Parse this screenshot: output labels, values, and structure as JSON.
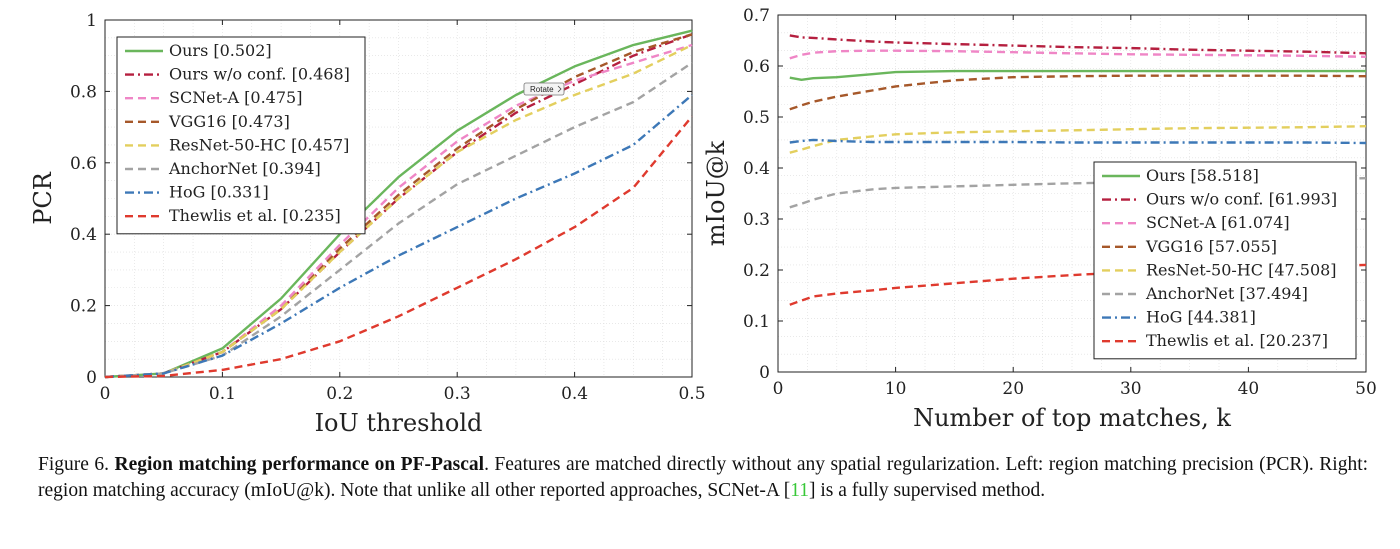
{
  "caption": {
    "figure_label": "Figure 6.",
    "title": "Region matching performance on PF-Pascal",
    "text_a": ". Features are matched directly without any spatial regularization. Left: region matching precision (PCR). Right: region matching accuracy (mIoU@k). Note that unlike all other reported approaches, SCNet-A [",
    "ref": "11",
    "text_b": "] is a fully supervised method."
  },
  "tooltip": {
    "label": "Rotate"
  },
  "colors": {
    "Ours": "#6ab65c",
    "Ours w/o conf.": "#b51f3f",
    "SCNet-A": "#ef86c6",
    "VGG16": "#a6582a",
    "ResNet-50-HC": "#e3cf5e",
    "AnchorNet": "#a3a3a3",
    "HoG": "#3d78b7",
    "Thewlis et al.": "#df3a2e"
  },
  "chart_data": [
    {
      "type": "line",
      "xlabel": "IoU threshold",
      "ylabel": "PCR",
      "xlim": [
        0,
        0.5
      ],
      "ylim": [
        0,
        1
      ],
      "xticks": [
        "0",
        "0.1",
        "0.2",
        "0.3",
        "0.4",
        "0.5"
      ],
      "xtick_values": [
        0,
        0.1,
        0.2,
        0.3,
        0.4,
        0.5
      ],
      "yticks": [
        "0",
        "0.2",
        "0.4",
        "0.6",
        "0.8",
        "1"
      ],
      "ytick_values": [
        0,
        0.2,
        0.4,
        0.6,
        0.8,
        1
      ],
      "grid": true,
      "legend_position": "top-left",
      "x": [
        0,
        0.05,
        0.1,
        0.15,
        0.2,
        0.25,
        0.3,
        0.35,
        0.4,
        0.45,
        0.5
      ],
      "series": [
        {
          "name": "Ours",
          "legend": "Ours [0.502]",
          "style": "solid",
          "values": [
            0,
            0.01,
            0.08,
            0.22,
            0.4,
            0.56,
            0.69,
            0.79,
            0.87,
            0.93,
            0.97
          ]
        },
        {
          "name": "Ours w/o conf.",
          "legend": "Ours w/o conf. [0.468]",
          "style": "dashdot",
          "values": [
            0,
            0.01,
            0.07,
            0.19,
            0.35,
            0.5,
            0.63,
            0.74,
            0.82,
            0.9,
            0.96
          ]
        },
        {
          "name": "SCNet-A",
          "legend": "SCNet-A [0.475]",
          "style": "dashed",
          "values": [
            0,
            0.01,
            0.07,
            0.2,
            0.37,
            0.53,
            0.66,
            0.76,
            0.83,
            0.88,
            0.93
          ]
        },
        {
          "name": "VGG16",
          "legend": "VGG16 [0.473]",
          "style": "dashed",
          "values": [
            0,
            0.01,
            0.07,
            0.19,
            0.36,
            0.51,
            0.64,
            0.75,
            0.84,
            0.91,
            0.96
          ]
        },
        {
          "name": "ResNet-50-HC",
          "legend": "ResNet-50-HC [0.457]",
          "style": "dashed",
          "values": [
            0,
            0.01,
            0.07,
            0.19,
            0.35,
            0.5,
            0.63,
            0.72,
            0.79,
            0.85,
            0.93
          ]
        },
        {
          "name": "AnchorNet",
          "legend": "AnchorNet [0.394]",
          "style": "dashed",
          "values": [
            0,
            0.01,
            0.06,
            0.17,
            0.3,
            0.43,
            0.54,
            0.62,
            0.7,
            0.77,
            0.88
          ]
        },
        {
          "name": "HoG",
          "legend": "HoG [0.331]",
          "style": "dashdot",
          "values": [
            0,
            0.01,
            0.06,
            0.15,
            0.25,
            0.34,
            0.42,
            0.5,
            0.57,
            0.65,
            0.79
          ]
        },
        {
          "name": "Thewlis et al.",
          "legend": "Thewlis et al. [0.235]",
          "style": "dashed",
          "values": [
            0,
            0.003,
            0.02,
            0.05,
            0.1,
            0.17,
            0.25,
            0.33,
            0.42,
            0.53,
            0.73
          ]
        }
      ]
    },
    {
      "type": "line",
      "xlabel": "Number of top matches, k",
      "ylabel": "mIoU@k",
      "xlim": [
        0,
        50
      ],
      "ylim": [
        0,
        0.7
      ],
      "xticks": [
        "0",
        "10",
        "20",
        "30",
        "40",
        "50"
      ],
      "xtick_values": [
        0,
        10,
        20,
        30,
        40,
        50
      ],
      "yticks": [
        "0",
        "0.1",
        "0.2",
        "0.3",
        "0.4",
        "0.5",
        "0.6",
        "0.7"
      ],
      "ytick_values": [
        0,
        0.1,
        0.2,
        0.3,
        0.4,
        0.5,
        0.6,
        0.7
      ],
      "grid": true,
      "legend_position": "bottom-right",
      "x": [
        1,
        2,
        3,
        5,
        8,
        10,
        15,
        20,
        25,
        30,
        35,
        40,
        45,
        50
      ],
      "series": [
        {
          "name": "Ours",
          "legend": "Ours [58.518]",
          "style": "solid",
          "values": [
            0.577,
            0.573,
            0.576,
            0.578,
            0.584,
            0.588,
            0.59,
            0.59,
            0.59,
            0.59,
            0.59,
            0.59,
            0.59,
            0.59
          ]
        },
        {
          "name": "Ours w/o conf.",
          "legend": "Ours w/o conf. [61.993]",
          "style": "dashdot",
          "values": [
            0.66,
            0.656,
            0.655,
            0.652,
            0.648,
            0.646,
            0.643,
            0.64,
            0.637,
            0.635,
            0.632,
            0.63,
            0.628,
            0.625
          ]
        },
        {
          "name": "SCNet-A",
          "legend": "SCNet-A [61.074]",
          "style": "dashed",
          "values": [
            0.615,
            0.622,
            0.626,
            0.629,
            0.63,
            0.63,
            0.629,
            0.627,
            0.625,
            0.623,
            0.622,
            0.621,
            0.62,
            0.618
          ]
        },
        {
          "name": "VGG16",
          "legend": "VGG16 [57.055]",
          "style": "dashed",
          "values": [
            0.515,
            0.523,
            0.53,
            0.54,
            0.552,
            0.56,
            0.572,
            0.578,
            0.58,
            0.581,
            0.581,
            0.581,
            0.581,
            0.58
          ]
        },
        {
          "name": "ResNet-50-HC",
          "legend": "ResNet-50-HC [47.508]",
          "style": "dashed",
          "values": [
            0.43,
            0.436,
            0.443,
            0.455,
            0.462,
            0.466,
            0.47,
            0.472,
            0.474,
            0.476,
            0.478,
            0.479,
            0.48,
            0.482
          ]
        },
        {
          "name": "AnchorNet",
          "legend": "AnchorNet [37.494]",
          "style": "dashed",
          "values": [
            0.323,
            0.33,
            0.338,
            0.35,
            0.358,
            0.361,
            0.364,
            0.367,
            0.37,
            0.372,
            0.374,
            0.376,
            0.378,
            0.38
          ]
        },
        {
          "name": "HoG",
          "legend": "HoG [44.381]",
          "style": "dashdot",
          "values": [
            0.45,
            0.453,
            0.455,
            0.453,
            0.451,
            0.451,
            0.451,
            0.451,
            0.45,
            0.45,
            0.45,
            0.45,
            0.45,
            0.449
          ]
        },
        {
          "name": "Thewlis et al.",
          "legend": "Thewlis et al. [20.237]",
          "style": "dashed",
          "values": [
            0.132,
            0.14,
            0.148,
            0.154,
            0.16,
            0.165,
            0.174,
            0.183,
            0.19,
            0.196,
            0.2,
            0.203,
            0.206,
            0.21
          ]
        }
      ]
    }
  ]
}
